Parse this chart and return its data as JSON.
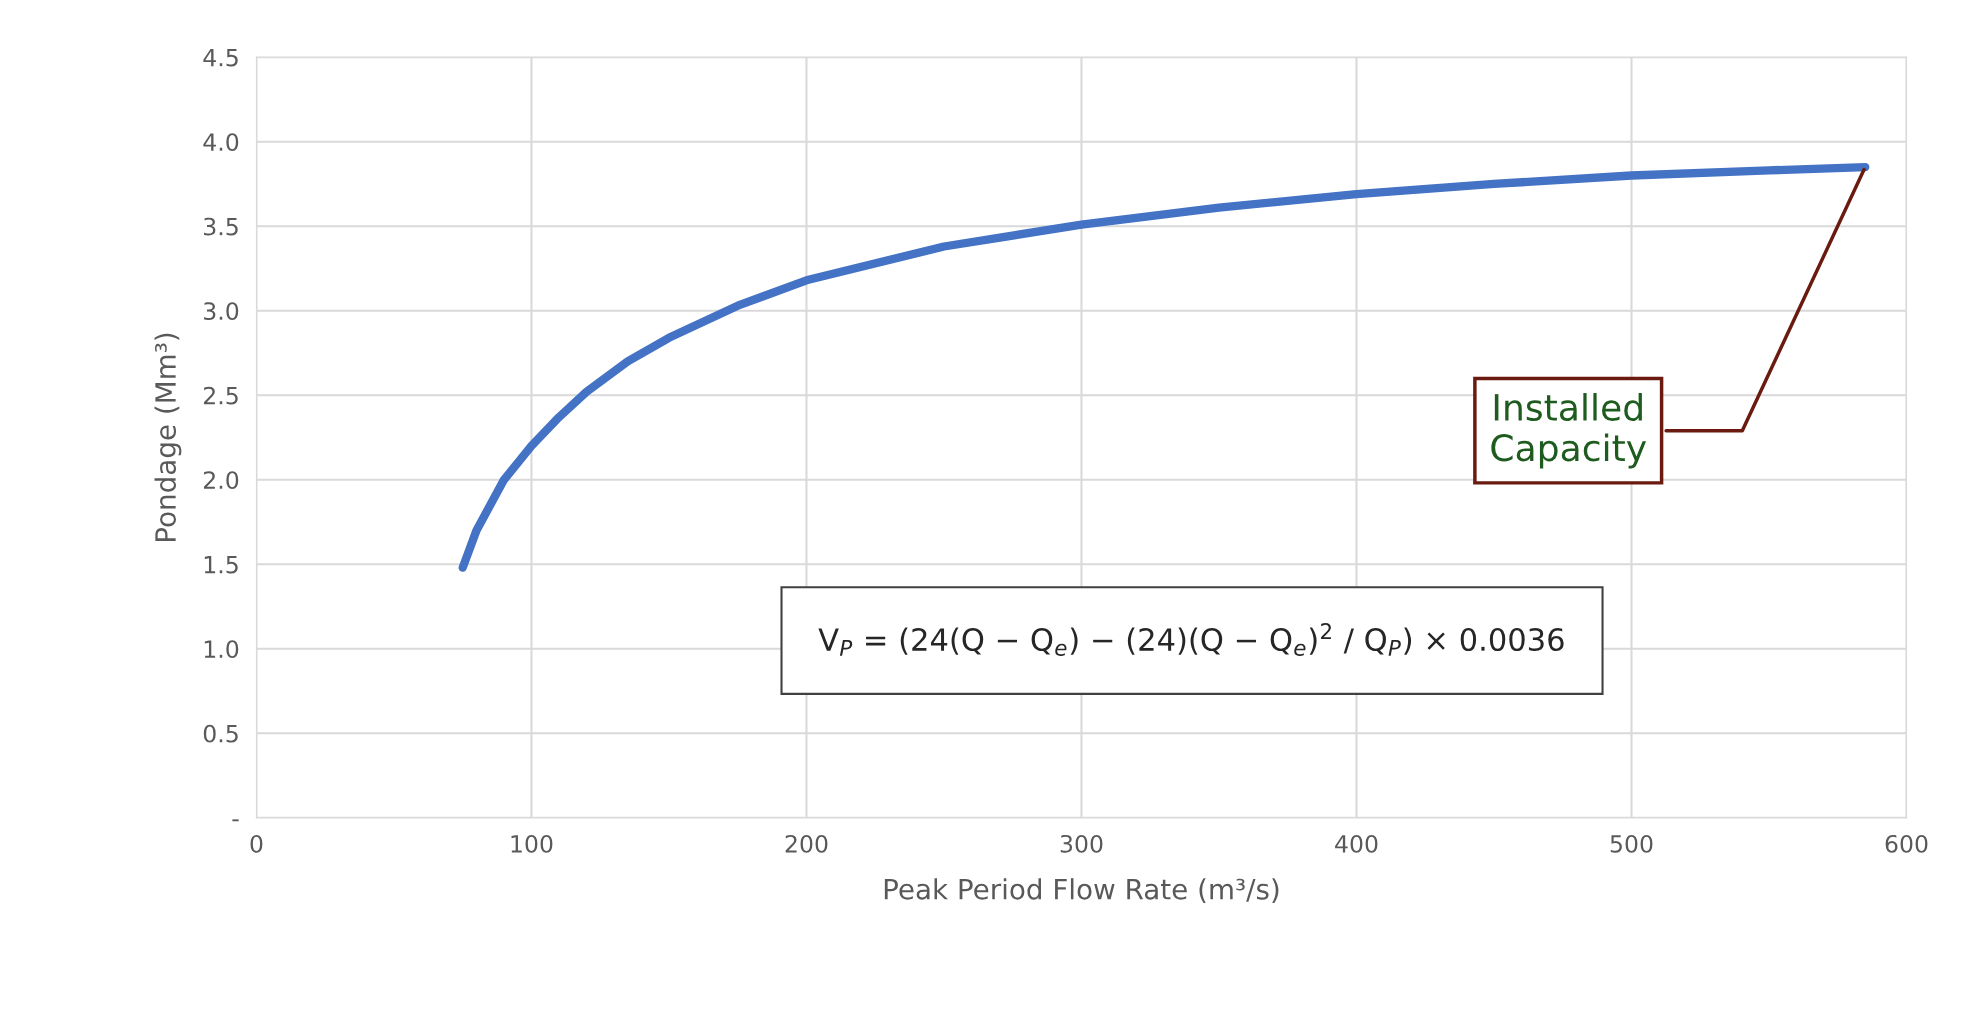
{
  "chart_data": {
    "type": "line",
    "xlabel": "Peak Period Flow Rate (m³/s)",
    "ylabel": "Pondage (Mm³)",
    "x": [
      75,
      80,
      90,
      100,
      110,
      120,
      135,
      150,
      175,
      200,
      250,
      300,
      350,
      400,
      450,
      500,
      550,
      585
    ],
    "series": [
      {
        "color": "#4472c4",
        "values": [
          1.48,
          1.7,
          2.0,
          2.2,
          2.37,
          2.52,
          2.7,
          2.84,
          3.03,
          3.18,
          3.38,
          3.51,
          3.61,
          3.69,
          3.75,
          3.8,
          3.83,
          3.85
        ]
      }
    ],
    "xlim": [
      0,
      600
    ],
    "xticks": [
      0,
      100,
      200,
      300,
      400,
      500,
      600
    ],
    "ylim": [
      0,
      4.5
    ],
    "yticks": [
      {
        "value": 0,
        "label": "-"
      },
      {
        "value": 0.5,
        "label": "0.5"
      },
      {
        "value": 1,
        "label": "1.0"
      },
      {
        "value": 1.5,
        "label": "1.5"
      },
      {
        "value": 2,
        "label": "2.0"
      },
      {
        "value": 2.5,
        "label": "2.5"
      },
      {
        "value": 3,
        "label": "3.0"
      },
      {
        "value": 3.5,
        "label": "3.5"
      },
      {
        "value": 4,
        "label": "4.0"
      },
      {
        "value": 4.5,
        "label": "4.5"
      }
    ],
    "grid": true,
    "line_style": "solid",
    "marker": "none",
    "annotations": [
      {
        "text": "Installed\nCapacity",
        "x": 585,
        "y": 3.85
      },
      "V$_{P}$ = (24(Q − Q$_{e}$) − (24)(Q − Q$_{e}$)$^{2}$ / Q$_{P}$) × 0.0036"
    ]
  }
}
